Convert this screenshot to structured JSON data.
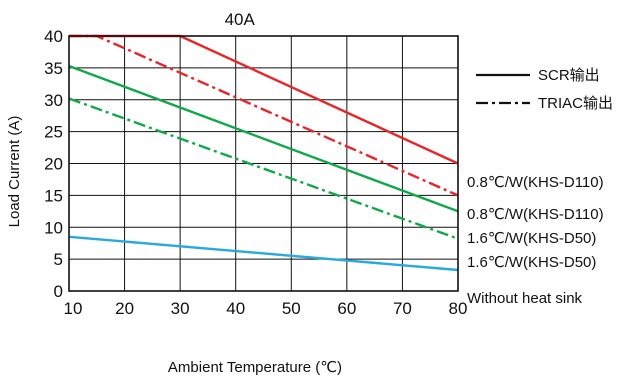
{
  "chart_data": {
    "type": "line",
    "title": "40A",
    "xlabel": "Ambient Temperature (℃)",
    "ylabel": "Load Current (A)",
    "xlim": [
      10,
      80
    ],
    "ylim": [
      0,
      40
    ],
    "x_ticks": [
      "10",
      "20",
      "30",
      "40",
      "50",
      "60",
      "70",
      "80"
    ],
    "y_ticks": [
      "0",
      "5",
      "10",
      "15",
      "20",
      "25",
      "30",
      "35",
      "40"
    ],
    "grid": true,
    "legend_position": "top-right",
    "legend": [
      {
        "label": "SCR输出",
        "style": "solid"
      },
      {
        "label": "TRIAC输出",
        "style": "dashdot"
      }
    ],
    "series": [
      {
        "label": "0.8℃/W(KHS-D110)",
        "color": "#e8262a",
        "style": "solid",
        "points": [
          [
            10,
            40
          ],
          [
            30,
            40
          ],
          [
            80,
            20
          ]
        ]
      },
      {
        "label": "0.8℃/W(KHS-D110)",
        "color": "#e8262a",
        "style": "dashdot",
        "points": [
          [
            10,
            40
          ],
          [
            15,
            40
          ],
          [
            80,
            15
          ]
        ]
      },
      {
        "label": "1.6℃/W(KHS-D50)",
        "color": "#12a84a",
        "style": "solid",
        "points": [
          [
            10,
            35.3
          ],
          [
            80,
            12.5
          ]
        ]
      },
      {
        "label": "1.6℃/W(KHS-D50)",
        "color": "#12a84a",
        "style": "dashdot",
        "points": [
          [
            10,
            30.2
          ],
          [
            80,
            8.2
          ]
        ]
      },
      {
        "label": "Without heat sink",
        "color": "#2aa9df",
        "style": "solid",
        "points": [
          [
            10,
            8.5
          ],
          [
            80,
            3.3
          ]
        ]
      }
    ]
  }
}
